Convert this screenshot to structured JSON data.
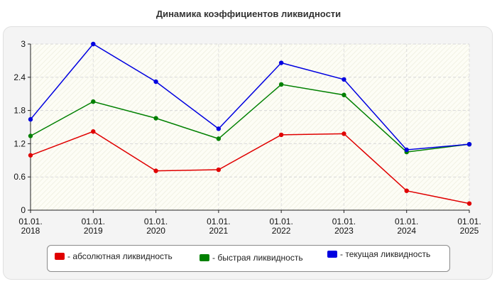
{
  "chart_data": {
    "type": "line",
    "title": "Динамика коэффициентов ликвидности",
    "xlabel": "",
    "ylabel": "",
    "categories": [
      [
        "01.01.",
        "2018"
      ],
      [
        "01.01.",
        "2019"
      ],
      [
        "01.01.",
        "2020"
      ],
      [
        "01.01.",
        "2021"
      ],
      [
        "01.01.",
        "2022"
      ],
      [
        "01.01.",
        "2023"
      ],
      [
        "01.01.",
        "2024"
      ],
      [
        "01.01.",
        "2025"
      ]
    ],
    "y_ticks": [
      "0",
      "0.6",
      "1.2",
      "1.8",
      "2.4",
      "3"
    ],
    "ylim": [
      0,
      3
    ],
    "grid": true,
    "legend_position": "bottom",
    "series": [
      {
        "name": "- абсолютная ликвидность",
        "color": "#e00000",
        "values": [
          0.99,
          1.42,
          0.71,
          0.73,
          1.36,
          1.38,
          0.35,
          0.12
        ]
      },
      {
        "name": "- быстрая ликвидность",
        "color": "#008000",
        "values": [
          1.34,
          1.96,
          1.66,
          1.29,
          2.27,
          2.08,
          1.05,
          1.19
        ]
      },
      {
        "name": "- текущая ликвидность",
        "color": "#0000e0",
        "values": [
          1.64,
          3.0,
          2.32,
          1.47,
          2.66,
          2.36,
          1.09,
          1.19
        ]
      }
    ]
  }
}
